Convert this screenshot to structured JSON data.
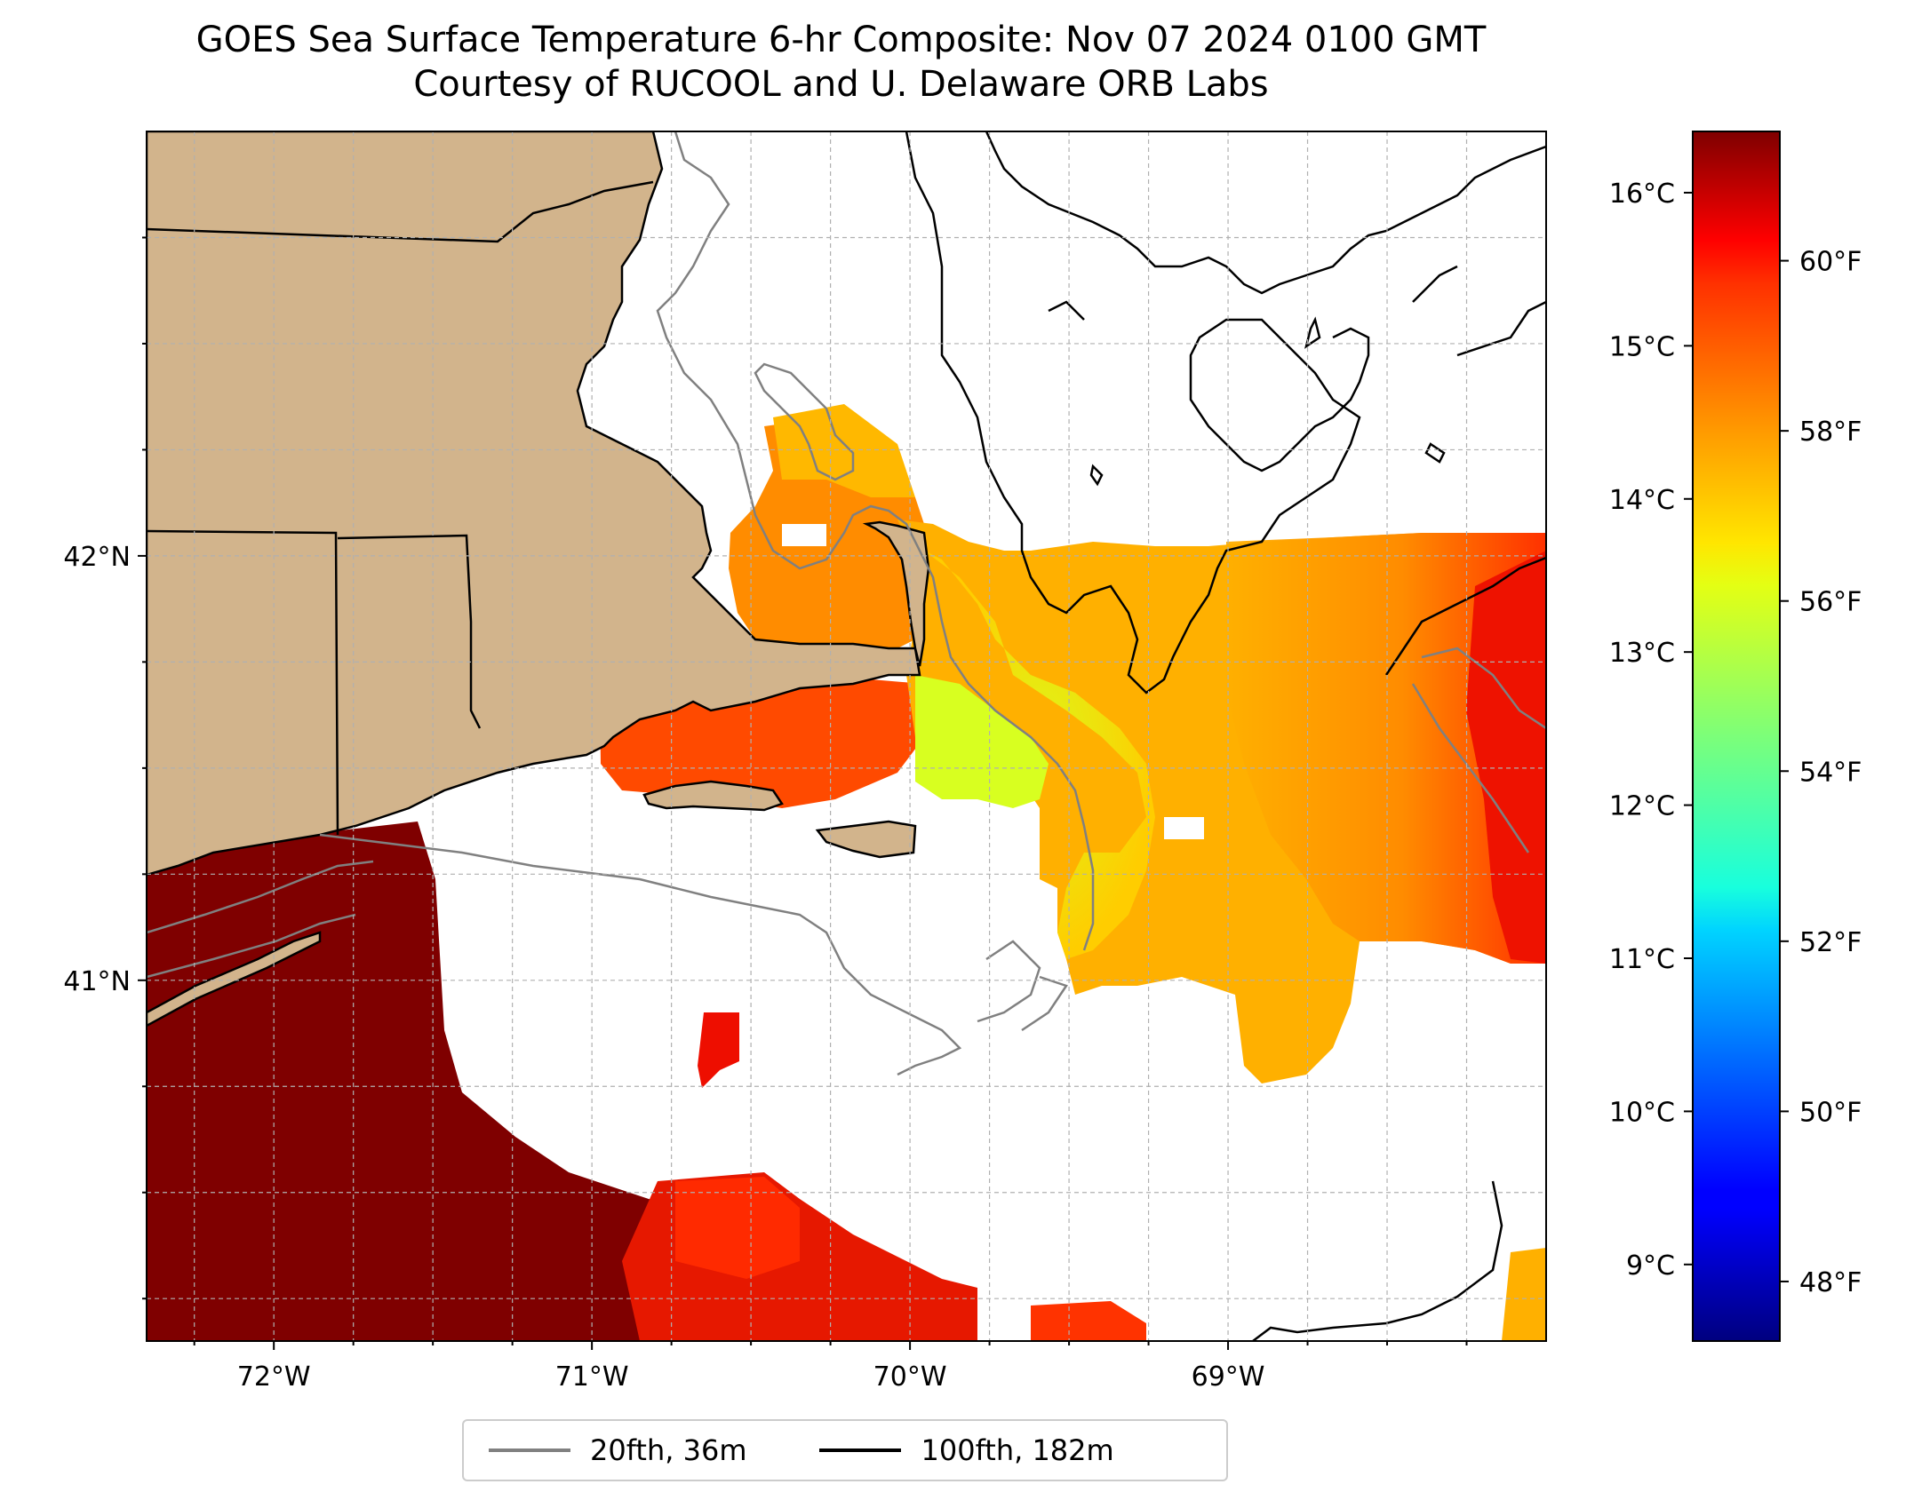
{
  "title": {
    "line1": "GOES Sea Surface Temperature 6-hr Composite: Nov 07 2024 0100 GMT",
    "line2": "Courtesy of RUCOOL and U. Delaware ORB Labs"
  },
  "map": {
    "lon_range": [
      -72.4,
      -68.0
    ],
    "lat_range": [
      40.15,
      43.0
    ],
    "lon_ticks": [
      {
        "value": -72,
        "label": "72°W"
      },
      {
        "value": -71,
        "label": "71°W"
      },
      {
        "value": -70,
        "label": "70°W"
      },
      {
        "value": -69,
        "label": "69°W"
      }
    ],
    "lat_ticks": [
      {
        "value": 42,
        "label": "42°N"
      },
      {
        "value": 41,
        "label": "41°N"
      }
    ],
    "gridlines": "dashed",
    "land_color": "#d2b48c"
  },
  "colorbar": {
    "colormap": "jet",
    "celsius_range": [
      8.5,
      16.4
    ],
    "celsius_ticks": [
      {
        "value": 9,
        "label": "9°C"
      },
      {
        "value": 10,
        "label": "10°C"
      },
      {
        "value": 11,
        "label": "11°C"
      },
      {
        "value": 12,
        "label": "12°C"
      },
      {
        "value": 13,
        "label": "13°C"
      },
      {
        "value": 14,
        "label": "14°C"
      },
      {
        "value": 15,
        "label": "15°C"
      },
      {
        "value": 16,
        "label": "16°C"
      }
    ],
    "fahrenheit_ticks": [
      {
        "value": 48,
        "label": "48°F"
      },
      {
        "value": 50,
        "label": "50°F"
      },
      {
        "value": 52,
        "label": "52°F"
      },
      {
        "value": 54,
        "label": "54°F"
      },
      {
        "value": 56,
        "label": "56°F"
      },
      {
        "value": 58,
        "label": "58°F"
      },
      {
        "value": 60,
        "label": "60°F"
      }
    ]
  },
  "legend": {
    "items": [
      {
        "label": "20fth, 36m",
        "color": "#808080"
      },
      {
        "label": "100fth, 182m",
        "color": "#000000"
      }
    ]
  }
}
